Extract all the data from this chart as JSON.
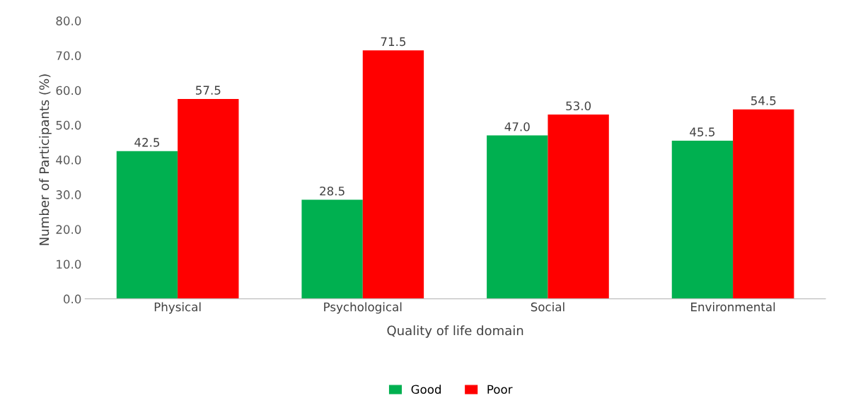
{
  "chart_data": {
    "type": "bar",
    "xlabel": "Quality of life domain",
    "ylabel": "Number of Participants (%)",
    "categories": [
      "Physical",
      "Psychological",
      "Social",
      "Environmental"
    ],
    "series": [
      {
        "name": "Good",
        "color": "#00b050",
        "values": [
          42.5,
          28.5,
          47.0,
          45.5
        ],
        "value_labels": [
          "42.5",
          "28.5",
          "47.0",
          "45.5"
        ]
      },
      {
        "name": "Poor",
        "color": "#ff0000",
        "values": [
          57.5,
          71.5,
          53.0,
          54.5
        ],
        "value_labels": [
          "57.5",
          "71.5",
          "53.0",
          "54.5"
        ]
      }
    ],
    "ylim": [
      0,
      80
    ],
    "yticks": [
      {
        "value": 0,
        "label": "0.0"
      },
      {
        "value": 10,
        "label": "10.0"
      },
      {
        "value": 20,
        "label": "20.0"
      },
      {
        "value": 30,
        "label": "30.0"
      },
      {
        "value": 40,
        "label": "40.0"
      },
      {
        "value": 50,
        "label": "50.0"
      },
      {
        "value": 60,
        "label": "60.0"
      },
      {
        "value": 70,
        "label": "70.0"
      },
      {
        "value": 80,
        "label": "80.0"
      }
    ],
    "grid": false,
    "legend": "bottom"
  }
}
